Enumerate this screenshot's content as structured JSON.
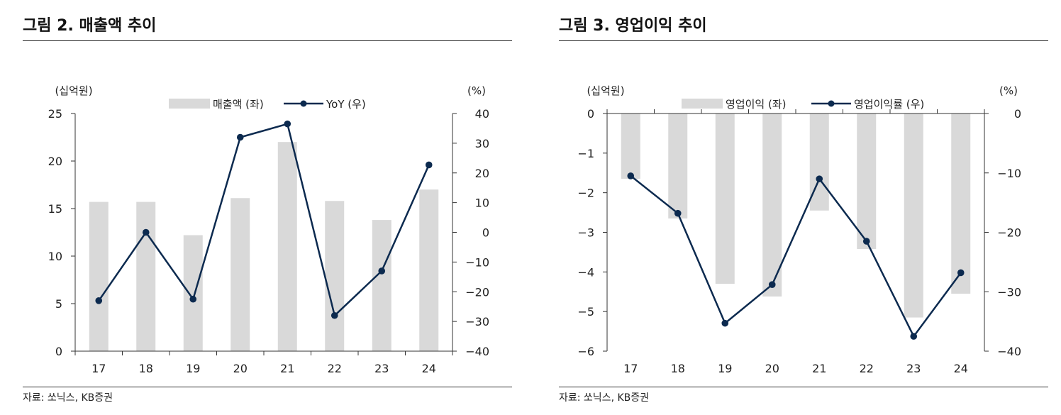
{
  "colors": {
    "bar": "#d9d9d9",
    "line": "#0c2a4f",
    "axis": "#333333"
  },
  "chart_data": [
    {
      "type": "bar+line",
      "title": "그림 2. 매출액 추이",
      "source": "자료: 쏘닉스, KB증권",
      "left_unit": "(십억원)",
      "right_unit": "(%)",
      "categories": [
        "17",
        "18",
        "19",
        "20",
        "21",
        "22",
        "23",
        "24"
      ],
      "left_axis": {
        "range": [
          0,
          25
        ],
        "ticks": [
          0,
          5,
          10,
          15,
          20,
          25
        ],
        "tick_labels": [
          "0",
          "5",
          "10",
          "15",
          "20",
          "25"
        ]
      },
      "right_axis": {
        "range": [
          -40,
          40
        ],
        "ticks": [
          40,
          30,
          20,
          10,
          0,
          -10,
          -20,
          -30,
          -40
        ],
        "tick_labels": [
          "40",
          "30",
          "20",
          "10",
          "0",
          "−10",
          "−20",
          "−30",
          "−40"
        ]
      },
      "series": [
        {
          "name": "매출액 (좌)",
          "kind": "bar",
          "axis": "left",
          "values": [
            15.7,
            15.7,
            12.2,
            16.1,
            22.0,
            15.8,
            13.8,
            17.0
          ]
        },
        {
          "name": "YoY (우)",
          "kind": "line",
          "axis": "right",
          "values": [
            -23.0,
            0.0,
            -22.5,
            32.0,
            36.5,
            -28.0,
            -13.0,
            22.7
          ]
        }
      ]
    },
    {
      "type": "bar+line",
      "title": "그림 3. 영업이익 추이",
      "source": "자료: 쏘닉스, KB증권",
      "left_unit": "(십억원)",
      "right_unit": "(%)",
      "categories": [
        "17",
        "18",
        "19",
        "20",
        "21",
        "22",
        "23",
        "24"
      ],
      "left_axis": {
        "range": [
          -6,
          0
        ],
        "ticks": [
          0,
          -1,
          -2,
          -3,
          -4,
          -5,
          -6
        ],
        "tick_labels": [
          "0",
          "−1",
          "−2",
          "−3",
          "−4",
          "−5",
          "−6"
        ]
      },
      "right_axis": {
        "range": [
          -40,
          0
        ],
        "ticks": [
          0,
          -10,
          -20,
          -30,
          -40
        ],
        "tick_labels": [
          "0",
          "−10",
          "−20",
          "−30",
          "−40"
        ]
      },
      "series": [
        {
          "name": "영업이익 (좌)",
          "kind": "bar",
          "axis": "left",
          "values": [
            -1.65,
            -2.65,
            -4.3,
            -4.62,
            -2.45,
            -3.42,
            -5.15,
            -4.55
          ]
        },
        {
          "name": "영업이익률 (우)",
          "kind": "line",
          "axis": "right",
          "values": [
            -10.5,
            -16.8,
            -35.3,
            -28.8,
            -11.0,
            -21.5,
            -37.5,
            -26.8
          ]
        }
      ]
    }
  ]
}
